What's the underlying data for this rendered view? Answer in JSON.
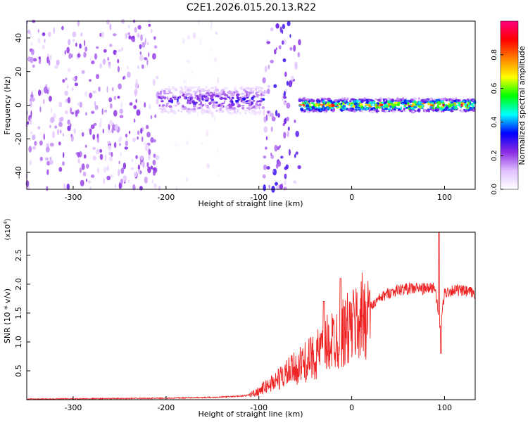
{
  "title": "C2E1.2026.015.20.13.R22",
  "chart_data": [
    {
      "type": "heatmap",
      "xlabel": "Height of straight line (km)",
      "ylabel": "Frequency (Hz)",
      "xlim": [
        -350,
        133
      ],
      "ylim": [
        -50,
        50
      ],
      "x_ticks": [
        -300,
        -200,
        -100,
        0,
        100
      ],
      "y_ticks": [
        -40,
        -20,
        0,
        20,
        40
      ],
      "x_tick_labels": [
        "-300",
        "-200",
        "-100",
        "0",
        "100"
      ],
      "y_tick_labels": [
        "-40",
        "-20",
        "0",
        "20",
        "40"
      ],
      "colorbar": {
        "label": "Normalized spectral amplitude",
        "range": [
          0,
          1
        ],
        "ticks": [
          0.0,
          0.2,
          0.4,
          0.6,
          0.8
        ],
        "tick_labels": [
          "0.0",
          "0.2",
          "0.4",
          "0.6",
          "0.8"
        ],
        "colormap": [
          "#ffffff",
          "#e0c0ff",
          "#8a2be2",
          "#0000ff",
          "#00ffff",
          "#00ff00",
          "#ffff00",
          "#ff8000",
          "#ff0000",
          "#ff0080"
        ]
      },
      "regions": [
        {
          "x_range": [
            -350,
            -207
          ],
          "kind": "noise",
          "level": 0.12
        },
        {
          "x_range": [
            -207,
            -95
          ],
          "kind": "band",
          "center_freq": 3,
          "halfwidth": 8,
          "level": 0.3
        },
        {
          "x_range": [
            -190,
            -140
          ],
          "kind": "faint_noise",
          "level": 0.05
        },
        {
          "x_range": [
            -95,
            -56
          ],
          "kind": "noise",
          "level": 0.15
        },
        {
          "x_range": [
            -56,
            133
          ],
          "kind": "band",
          "center_freq": 0,
          "halfwidth": 4,
          "level": 0.8
        }
      ]
    },
    {
      "type": "line",
      "xlabel": "Height of straight line (km)",
      "ylabel": "SNR (10 * v/v)",
      "y_scale_label": "(x10",
      "y_scale_exp": "4",
      "y_scale_close": ")",
      "xlim": [
        -350,
        133
      ],
      "ylim": [
        0,
        29000
      ],
      "x_ticks": [
        -300,
        -200,
        -100,
        0,
        100
      ],
      "y_ticks": [
        5000,
        10000,
        15000,
        20000,
        25000
      ],
      "x_tick_labels": [
        "-300",
        "-200",
        "-100",
        "0",
        "100"
      ],
      "y_tick_labels": [
        "0.5",
        "1.0",
        "1.5",
        "2.0",
        "2.5"
      ],
      "color": "#ee2222",
      "series": [
        {
          "name": "SNR",
          "x": [
            -350,
            -300,
            -250,
            -200,
            -150,
            -120,
            -110,
            -100,
            -90,
            -80,
            -70,
            -60,
            -50,
            -40,
            -30,
            -20,
            -10,
            0,
            10,
            20,
            30,
            40,
            50,
            60,
            70,
            80,
            90,
            95,
            100,
            110,
            120,
            133
          ],
          "y": [
            100,
            150,
            200,
            250,
            400,
            600,
            800,
            1500,
            2500,
            3500,
            4500,
            5500,
            6500,
            7500,
            9000,
            10500,
            11500,
            12500,
            14000,
            16000,
            17500,
            18500,
            19000,
            19200,
            19300,
            19200,
            19500,
            12000,
            18500,
            19000,
            18800,
            18400
          ]
        }
      ],
      "peaks": [
        {
          "x": -30,
          "y": 17000
        },
        {
          "x": -12,
          "y": 21000
        },
        {
          "x": 94,
          "y": 29000
        },
        {
          "x": 96,
          "y": 8000
        }
      ]
    }
  ]
}
